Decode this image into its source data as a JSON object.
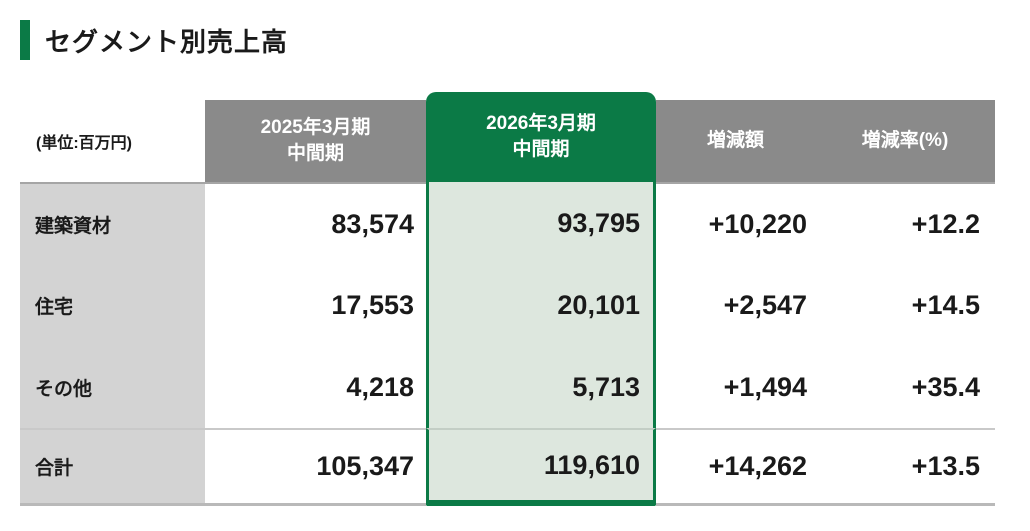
{
  "colors": {
    "accent_green": "#0b7a46",
    "header_gray": "#8a8a8a",
    "label_column_gray": "#d3d3d3",
    "highlight_column_green": "#dde7de"
  },
  "page": {
    "title": "セグメント別売上高"
  },
  "table": {
    "unit_label": "(単位:百万円)",
    "headers": {
      "prior_line1": "2025年3月期",
      "prior_line2": "中間期",
      "current_line1": "2026年3月期",
      "current_line2": "中間期",
      "change_amount": "増減額",
      "change_rate": "増減率(%)"
    },
    "rows": [
      {
        "label": "建築資材",
        "prior": "83,574",
        "current": "93,795",
        "change_amount": "+10,220",
        "change_rate": "+12.2"
      },
      {
        "label": "住宅",
        "prior": "17,553",
        "current": "20,101",
        "change_amount": "+2,547",
        "change_rate": "+14.5"
      },
      {
        "label": "その他",
        "prior": "4,218",
        "current": "5,713",
        "change_amount": "+1,494",
        "change_rate": "+35.4"
      }
    ],
    "total": {
      "label": "合計",
      "prior": "105,347",
      "current": "119,610",
      "change_amount": "+14,262",
      "change_rate": "+13.5"
    }
  },
  "chart_data": {
    "type": "table",
    "title": "セグメント別売上高",
    "unit": "百万円",
    "columns": [
      "2025年3月期 中間期",
      "2026年3月期 中間期",
      "増減額",
      "増減率(%)"
    ],
    "highlighted_column": "2026年3月期 中間期",
    "rows": [
      {
        "segment": "建築資材",
        "fy2025_h1": 83574,
        "fy2026_h1": 93795,
        "change": 10220,
        "change_rate_pct": 12.2
      },
      {
        "segment": "住宅",
        "fy2025_h1": 17553,
        "fy2026_h1": 20101,
        "change": 2547,
        "change_rate_pct": 14.5
      },
      {
        "segment": "その他",
        "fy2025_h1": 4218,
        "fy2026_h1": 5713,
        "change": 1494,
        "change_rate_pct": 35.4
      },
      {
        "segment": "合計",
        "fy2025_h1": 105347,
        "fy2026_h1": 119610,
        "change": 14262,
        "change_rate_pct": 13.5
      }
    ]
  }
}
